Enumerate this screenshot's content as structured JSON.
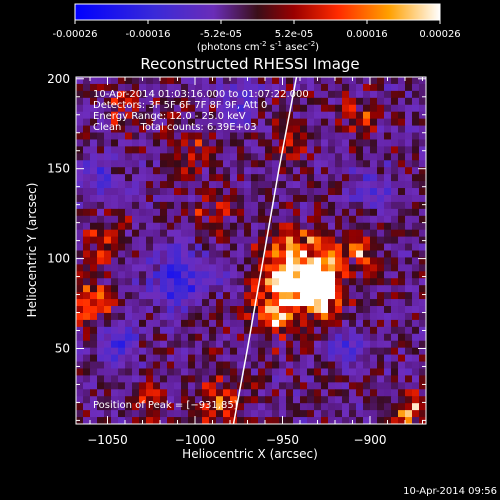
{
  "colorbar": {
    "ticks": [
      "-0.00026",
      "-0.00016",
      "-5.2e-05",
      "5.2e-05",
      "0.00016",
      "0.00026"
    ],
    "unit_parts": [
      "(photons cm",
      "-2",
      " s",
      "-1",
      " asec",
      "-2",
      ")"
    ]
  },
  "chart_data": {
    "type": "heatmap",
    "title": "Reconstructed RHESSI Image",
    "xlabel": "Heliocentric X (arcsec)",
    "ylabel": "Heliocentric Y (arcsec)",
    "xlim": [
      -1068,
      -868
    ],
    "ylim": [
      8,
      201
    ],
    "x_ticks": [
      -1050,
      -1000,
      -950,
      -900
    ],
    "y_ticks": [
      50,
      100,
      150,
      200
    ],
    "x_tick_labels": [
      "−1050",
      "−1000",
      "−950",
      "−900"
    ],
    "y_tick_labels": [
      "50",
      "100",
      "150",
      "200"
    ],
    "colorbar_range": [
      -0.00026,
      0.00026
    ],
    "colormap": [
      "#0000ff",
      "#5a2bd0",
      "#7a36c0",
      "#3a1020",
      "#b00000",
      "#ff3a00",
      "#ffa000",
      "#ffffff"
    ],
    "info_lines": [
      "10-Apr-2014 01:03:16.000 to 01:07:22.000",
      "Detectors: 3F 5F 6F 7F 8F 9F, Att 0",
      "Energy Range: 12.0 - 25.0 keV",
      "Clean      Total counts: 6.39E+03"
    ],
    "peak_text": "Position of Peak = [−931,85]",
    "peak_position": [
      -931,
      85
    ],
    "limb_curve": [
      [
        -978,
        8
      ],
      [
        -970,
        50
      ],
      [
        -961,
        100
      ],
      [
        -952,
        150
      ],
      [
        -942,
        201
      ]
    ],
    "emission_sources": [
      {
        "x": -940,
        "y": 95,
        "strength": 1.0,
        "spread": 14
      },
      {
        "x": -930,
        "y": 82,
        "strength": 0.85,
        "spread": 10
      },
      {
        "x": -955,
        "y": 70,
        "strength": 0.6,
        "spread": 10
      },
      {
        "x": -1060,
        "y": 75,
        "strength": 0.55,
        "spread": 11
      },
      {
        "x": -1050,
        "y": 110,
        "strength": 0.4,
        "spread": 9
      },
      {
        "x": -1005,
        "y": 160,
        "strength": 0.35,
        "spread": 10
      },
      {
        "x": -985,
        "y": 20,
        "strength": 0.55,
        "spread": 9
      },
      {
        "x": -1025,
        "y": 20,
        "strength": 0.35,
        "spread": 8
      },
      {
        "x": -878,
        "y": 15,
        "strength": 0.7,
        "spread": 7
      },
      {
        "x": -905,
        "y": 105,
        "strength": 0.45,
        "spread": 8
      },
      {
        "x": -905,
        "y": 180,
        "strength": 0.35,
        "spread": 8
      },
      {
        "x": -945,
        "y": 165,
        "strength": 0.35,
        "spread": 8
      },
      {
        "x": -1040,
        "y": 185,
        "strength": 0.35,
        "spread": 9
      },
      {
        "x": -990,
        "y": 125,
        "strength": 0.35,
        "spread": 9
      }
    ],
    "negative_regions": [
      {
        "x": -1010,
        "y": 90,
        "strength": 0.6,
        "spread": 12
      },
      {
        "x": -1045,
        "y": 55,
        "strength": 0.5,
        "spread": 9
      },
      {
        "x": -1055,
        "y": 145,
        "strength": 0.4,
        "spread": 9
      },
      {
        "x": -915,
        "y": 50,
        "strength": 0.45,
        "spread": 8
      },
      {
        "x": -900,
        "y": 140,
        "strength": 0.4,
        "spread": 8
      },
      {
        "x": -975,
        "y": 185,
        "strength": 0.3,
        "spread": 8
      }
    ]
  },
  "footer": {
    "timestamp": "10-Apr-2014 09:56"
  }
}
